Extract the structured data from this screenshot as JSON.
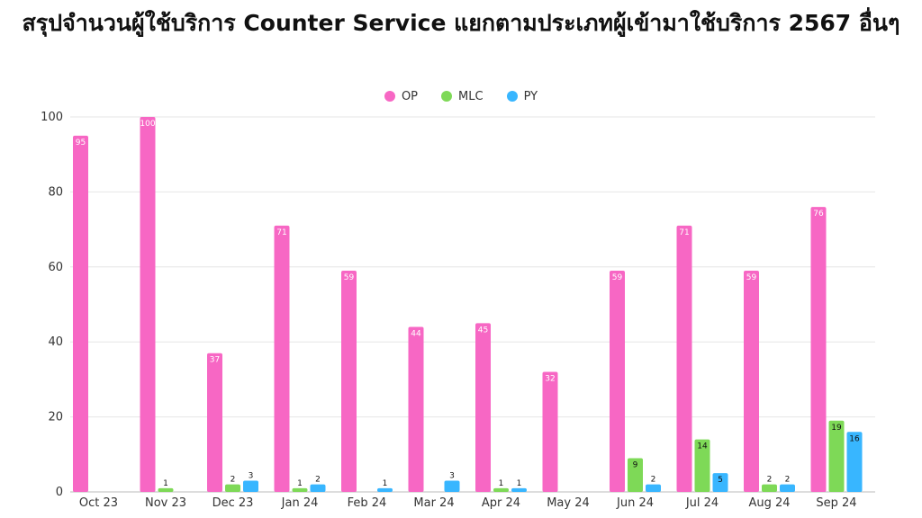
{
  "chart_data": {
    "type": "bar",
    "title": "สรุปจำนวนผู้ใช้บริการ Counter Service แยกตามประเภทผู้เข้ามาใช้บริการ 2567 อื่นๆ",
    "categories": [
      "Oct 23",
      "Nov 23",
      "Dec 23",
      "Jan 24",
      "Feb 24",
      "Mar 24",
      "Apr 24",
      "May 24",
      "Jun 24",
      "Jul 24",
      "Aug 24",
      "Sep 24"
    ],
    "series": [
      {
        "name": "OP",
        "color": "#f767c4",
        "values": [
          95,
          100,
          37,
          71,
          59,
          44,
          45,
          32,
          59,
          71,
          59,
          76
        ]
      },
      {
        "name": "MLC",
        "color": "#7ed957",
        "values": [
          0,
          1,
          2,
          1,
          0,
          0,
          1,
          0,
          9,
          14,
          2,
          19
        ]
      },
      {
        "name": "PY",
        "color": "#38b6ff",
        "values": [
          0,
          0,
          3,
          2,
          1,
          3,
          1,
          0,
          2,
          5,
          2,
          16
        ]
      }
    ],
    "yticks": [
      "0",
      "20",
      "40",
      "60",
      "80",
      "100"
    ],
    "ylim": [
      0,
      100
    ],
    "grid": true,
    "legend_position": "top-center",
    "xlabel": "",
    "ylabel": ""
  }
}
